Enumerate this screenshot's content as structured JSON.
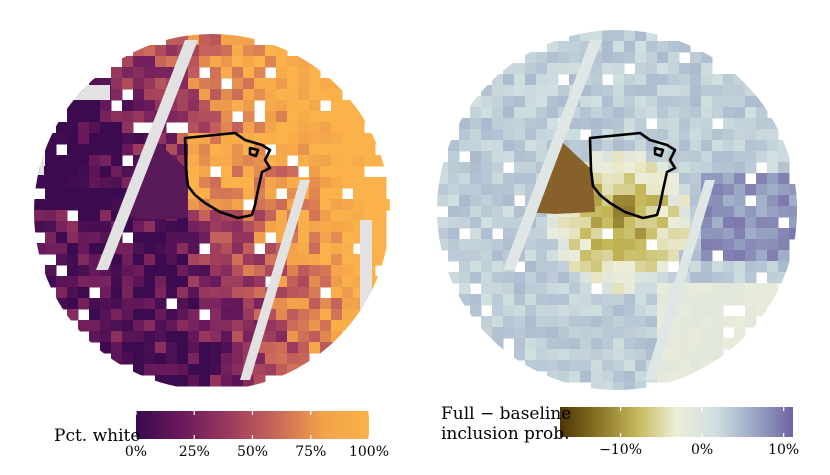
{
  "left_map": {
    "legend": {
      "title": "Pct. white",
      "ticks": [
        "0%",
        "25%",
        "50%",
        "75%",
        "100%"
      ],
      "colors": [
        "#3b0a4f",
        "#6a1a5c",
        "#9c3a5e",
        "#c9665a",
        "#f2a24a",
        "#fbb24a"
      ]
    }
  },
  "right_map": {
    "legend": {
      "title_line1": "Full − baseline",
      "title_line2": "inclusion prob.",
      "ticks": [
        "−10%",
        "0%",
        "10%"
      ],
      "colors": [
        "#4e3606",
        "#8a7427",
        "#c5b95a",
        "#eeeed9",
        "#cfdfe0",
        "#9aa9c6",
        "#6f62a1"
      ]
    }
  },
  "colors": {
    "outline": "#000000",
    "road": "#e0e0e0",
    "background": "#ffffff"
  }
}
